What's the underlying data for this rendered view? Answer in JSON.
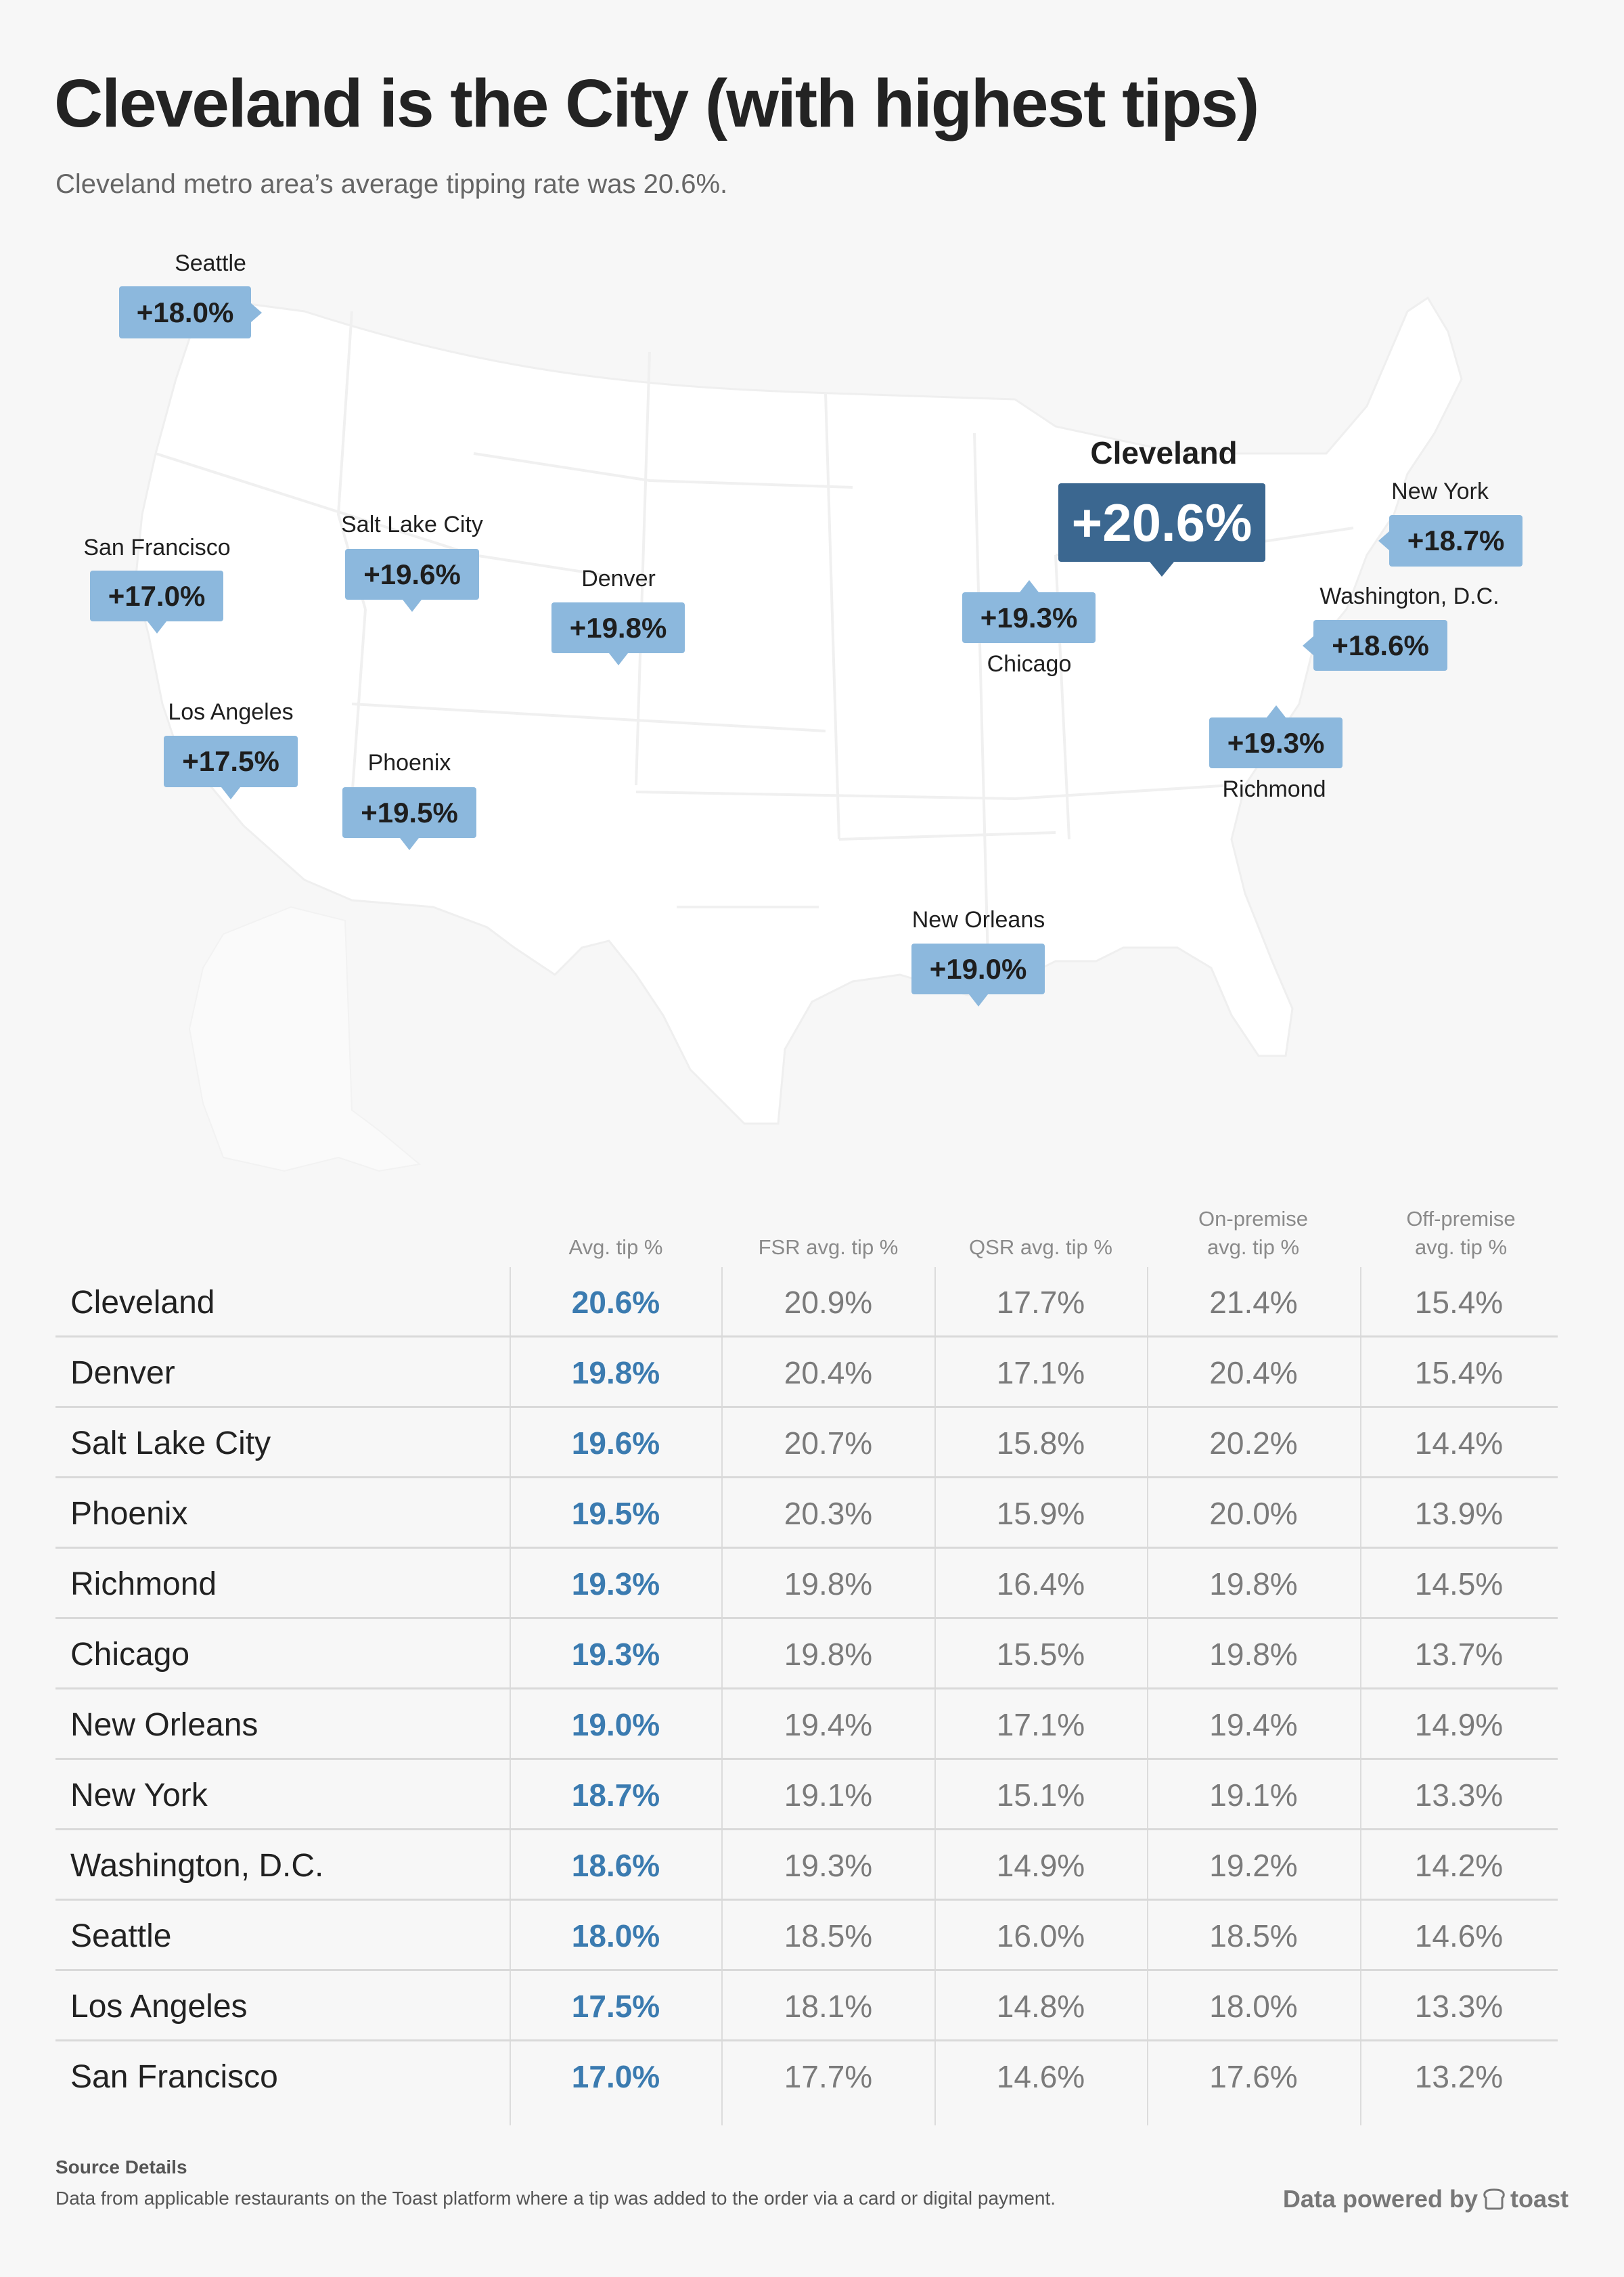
{
  "header": {
    "title": "Cleveland is the City (with highest tips)",
    "subtitle": "Cleveland metro area’s average tipping rate was 20.6%."
  },
  "map": {
    "colors": {
      "land": "#ffffff",
      "borders": "#efefef",
      "callout": "#8cb8dd",
      "highlight_callout": "#3b6790",
      "background": "#f7f7f7"
    },
    "callouts": [
      {
        "city": "Seattle",
        "value": "+18.0%"
      },
      {
        "city": "San Francisco",
        "value": "+17.0%"
      },
      {
        "city": "Salt Lake City",
        "value": "+19.6%"
      },
      {
        "city": "Denver",
        "value": "+19.8%"
      },
      {
        "city": "Los Angeles",
        "value": "+17.5%"
      },
      {
        "city": "Phoenix",
        "value": "+19.5%"
      },
      {
        "city": "Cleveland",
        "value": "+20.6%"
      },
      {
        "city": "New York",
        "value": "+18.7%"
      },
      {
        "city": "Chicago",
        "value": "+19.3%"
      },
      {
        "city": "Washington, D.C.",
        "value": "+18.6%"
      },
      {
        "city": "Richmond",
        "value": "+19.3%"
      },
      {
        "city": "New Orleans",
        "value": "+19.0%"
      }
    ]
  },
  "table": {
    "headers": [
      "",
      "Avg. tip %",
      "FSR avg. tip %",
      "QSR avg. tip %",
      "On-premise avg. tip %",
      "Off-premise avg. tip %"
    ],
    "header_lines": {
      "on_premise_1": "On-premise",
      "on_premise_2": "avg. tip %",
      "off_premise_1": "Off-premise",
      "off_premise_2": "avg. tip %"
    },
    "rows": [
      {
        "city": "Cleveland",
        "avg": "20.6%",
        "fsr": "20.9%",
        "qsr": "17.7%",
        "on": "21.4%",
        "off": "15.4%"
      },
      {
        "city": "Denver",
        "avg": "19.8%",
        "fsr": "20.4%",
        "qsr": "17.1%",
        "on": "20.4%",
        "off": "15.4%"
      },
      {
        "city": "Salt Lake City",
        "avg": "19.6%",
        "fsr": "20.7%",
        "qsr": "15.8%",
        "on": "20.2%",
        "off": "14.4%"
      },
      {
        "city": "Phoenix",
        "avg": "19.5%",
        "fsr": "20.3%",
        "qsr": "15.9%",
        "on": "20.0%",
        "off": "13.9%"
      },
      {
        "city": "Richmond",
        "avg": "19.3%",
        "fsr": "19.8%",
        "qsr": "16.4%",
        "on": "19.8%",
        "off": "14.5%"
      },
      {
        "city": "Chicago",
        "avg": "19.3%",
        "fsr": "19.8%",
        "qsr": "15.5%",
        "on": "19.8%",
        "off": "13.7%"
      },
      {
        "city": "New Orleans",
        "avg": "19.0%",
        "fsr": "19.4%",
        "qsr": "17.1%",
        "on": "19.4%",
        "off": "14.9%"
      },
      {
        "city": "New York",
        "avg": "18.7%",
        "fsr": "19.1%",
        "qsr": "15.1%",
        "on": "19.1%",
        "off": "13.3%"
      },
      {
        "city": "Washington, D.C.",
        "avg": "18.6%",
        "fsr": "19.3%",
        "qsr": "14.9%",
        "on": "19.2%",
        "off": "14.2%"
      },
      {
        "city": "Seattle",
        "avg": "18.0%",
        "fsr": "18.5%",
        "qsr": "16.0%",
        "on": "18.5%",
        "off": "14.6%"
      },
      {
        "city": "Los Angeles",
        "avg": "17.5%",
        "fsr": "18.1%",
        "qsr": "14.8%",
        "on": "18.0%",
        "off": "13.3%"
      },
      {
        "city": "San Francisco",
        "avg": "17.0%",
        "fsr": "17.7%",
        "qsr": "14.6%",
        "on": "17.6%",
        "off": "13.2%"
      }
    ]
  },
  "footer": {
    "source_title": "Source Details",
    "source_text": "Data from applicable restaurants on the Toast platform where a tip was added to the order via a card or digital payment.",
    "powered_by": "Data powered by",
    "brand": "toast",
    "brand_icon": "toast-bread-icon"
  }
}
